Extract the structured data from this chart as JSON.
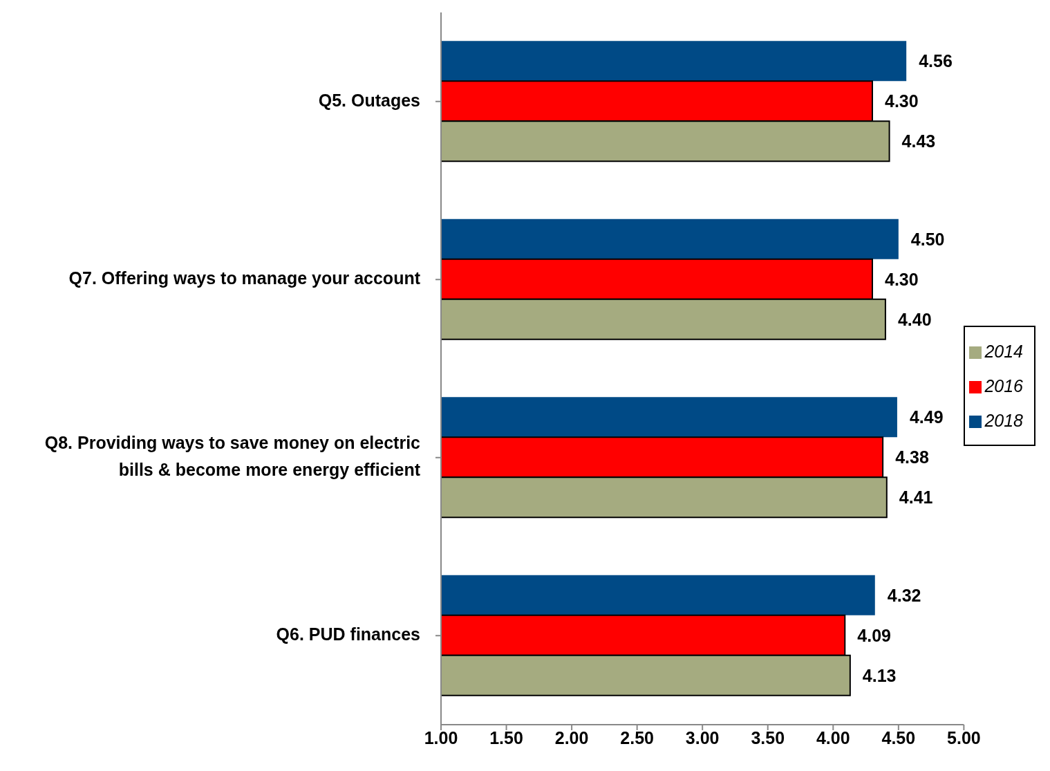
{
  "chart_data": {
    "type": "bar",
    "orientation": "horizontal",
    "categories": [
      "Q5. Outages",
      "Q7. Offering ways to manage your account",
      "Q8. Providing ways to save money on electric bills & become more energy efficient",
      "Q6. PUD finances"
    ],
    "series": [
      {
        "name": "2018",
        "color": "#004a86",
        "values": [
          4.56,
          4.5,
          4.49,
          4.32
        ],
        "value_labels": [
          "4.56",
          "4.50",
          "4.49",
          "4.32"
        ]
      },
      {
        "name": "2016",
        "color": "#ff0000",
        "values": [
          4.3,
          4.3,
          4.38,
          4.09
        ],
        "value_labels": [
          "4.30",
          "4.30",
          "4.38",
          "4.09"
        ]
      },
      {
        "name": "2014",
        "color": "#a5ab80",
        "values": [
          4.43,
          4.4,
          4.41,
          4.13
        ],
        "value_labels": [
          "4.43",
          "4.40",
          "4.41",
          "4.13"
        ]
      }
    ],
    "xlim": [
      1,
      5
    ],
    "xticks": [
      {
        "value": 1,
        "label": "1.00"
      },
      {
        "value": 1.5,
        "label": "1.50"
      },
      {
        "value": 2,
        "label": "2.00"
      },
      {
        "value": 2.5,
        "label": "2.50"
      },
      {
        "value": 3,
        "label": "3.00"
      },
      {
        "value": 3.5,
        "label": "3.50"
      },
      {
        "value": 4,
        "label": "4.00"
      },
      {
        "value": 4.5,
        "label": "4.50"
      },
      {
        "value": 5,
        "label": "5.00"
      }
    ],
    "grid": false,
    "legend": "right"
  }
}
